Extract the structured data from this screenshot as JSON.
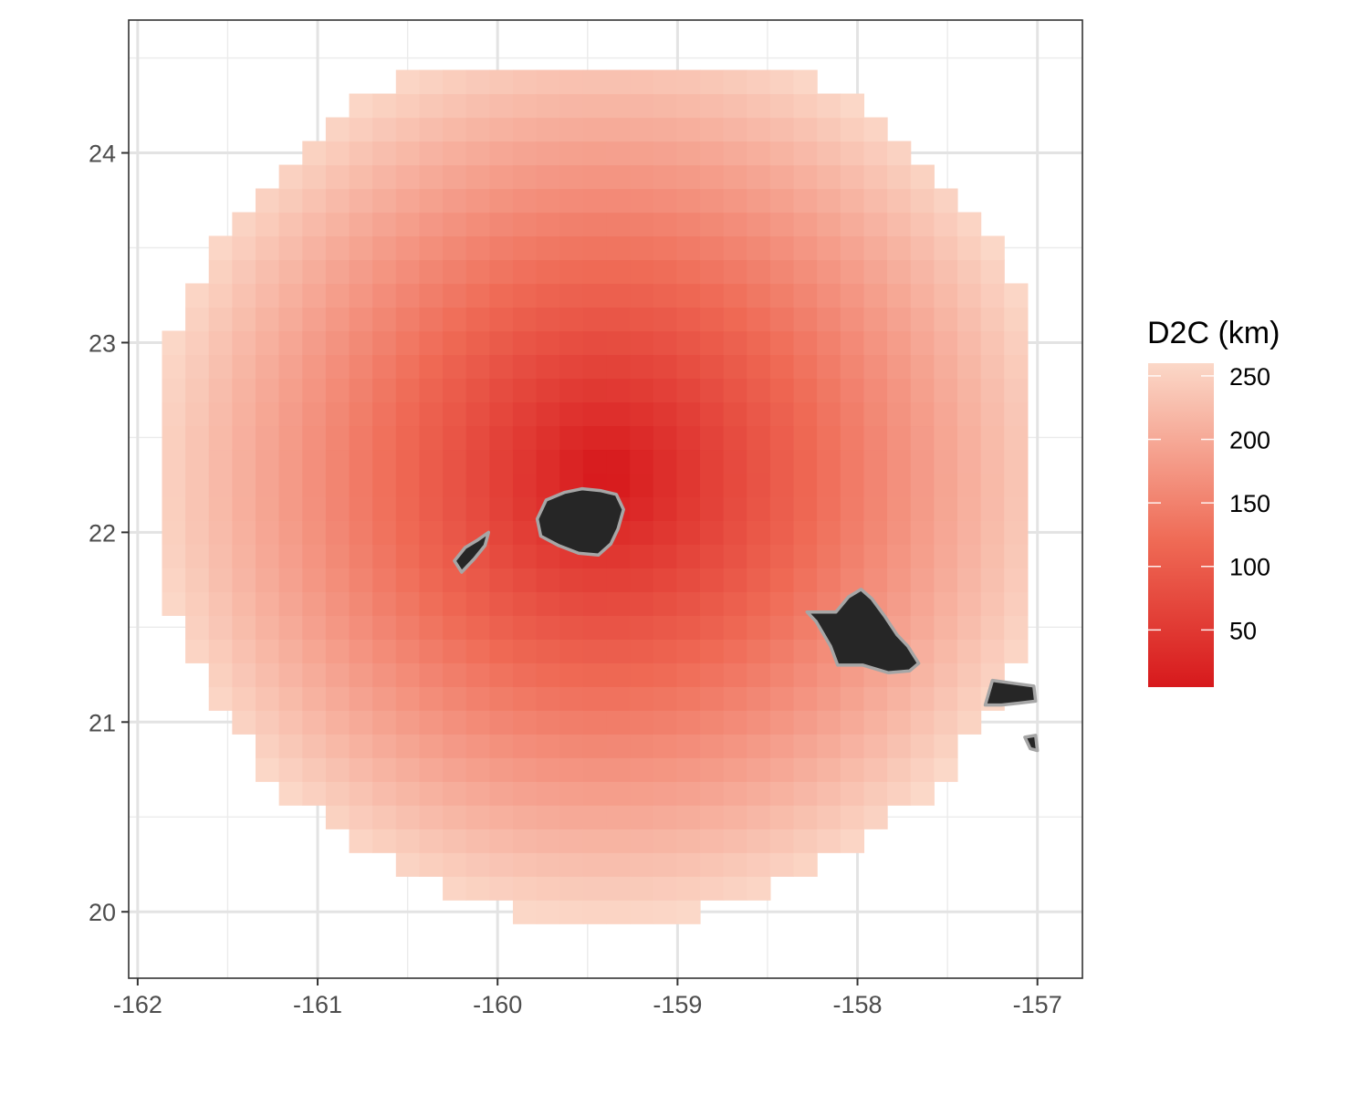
{
  "chart_data": {
    "type": "heatmap",
    "title": "",
    "xlabel": "",
    "ylabel": "",
    "xlim": [
      -162.05,
      -156.75
    ],
    "ylim": [
      19.65,
      24.7
    ],
    "x_ticks": [
      -162,
      -161,
      -160,
      -159,
      -158,
      -157
    ],
    "y_ticks": [
      20,
      21,
      22,
      23,
      24
    ],
    "x_tick_labels": [
      "-162",
      "-161",
      "-160",
      "-159",
      "-158",
      "-157"
    ],
    "y_tick_labels": [
      "20",
      "21",
      "22",
      "23",
      "24"
    ],
    "grid": true,
    "field": {
      "description_free": true,
      "center": [
        -159.4,
        22.3
      ],
      "radius_km": 260,
      "cell_size_deg": [
        0.13,
        0.125
      ],
      "x_start": -161.8,
      "y_start": 19.875,
      "n_cols": 37,
      "n_rows": 37
    },
    "colorbar": {
      "title": "D2C (km)",
      "min": 5,
      "max": 260,
      "ticks": [
        50,
        100,
        150,
        200,
        250
      ],
      "tick_labels": [
        "50",
        "100",
        "150",
        "200",
        "250"
      ],
      "low_color": "#d7191c",
      "mid_color": "#ef6a55",
      "high_color": "#fbd8c8",
      "position": "right"
    },
    "land": {
      "fill": "#262626",
      "outline": "#a6a6a6",
      "islands": [
        {
          "name": "kauai",
          "coords": [
            [
              -159.78,
              22.07
            ],
            [
              -159.73,
              22.17
            ],
            [
              -159.63,
              22.21
            ],
            [
              -159.53,
              22.23
            ],
            [
              -159.43,
              22.22
            ],
            [
              -159.34,
              22.2
            ],
            [
              -159.3,
              22.12
            ],
            [
              -159.33,
              22.02
            ],
            [
              -159.37,
              21.94
            ],
            [
              -159.44,
              21.88
            ],
            [
              -159.55,
              21.89
            ],
            [
              -159.66,
              21.93
            ],
            [
              -159.76,
              21.98
            ]
          ]
        },
        {
          "name": "niihau",
          "coords": [
            [
              -160.2,
              21.79
            ],
            [
              -160.24,
              21.85
            ],
            [
              -160.18,
              21.92
            ],
            [
              -160.11,
              21.96
            ],
            [
              -160.05,
              22.0
            ],
            [
              -160.07,
              21.93
            ],
            [
              -160.13,
              21.86
            ]
          ]
        },
        {
          "name": "oahu",
          "coords": [
            [
              -158.28,
              21.58
            ],
            [
              -158.12,
              21.58
            ],
            [
              -158.05,
              21.66
            ],
            [
              -157.98,
              21.7
            ],
            [
              -157.92,
              21.65
            ],
            [
              -157.85,
              21.56
            ],
            [
              -157.78,
              21.46
            ],
            [
              -157.72,
              21.4
            ],
            [
              -157.66,
              21.31
            ],
            [
              -157.71,
              21.27
            ],
            [
              -157.83,
              21.26
            ],
            [
              -157.97,
              21.3
            ],
            [
              -158.11,
              21.3
            ],
            [
              -158.15,
              21.4
            ],
            [
              -158.23,
              21.53
            ]
          ]
        },
        {
          "name": "molokai",
          "coords": [
            [
              -157.29,
              21.09
            ],
            [
              -157.25,
              21.22
            ],
            [
              -157.1,
              21.2
            ],
            [
              -157.02,
              21.19
            ],
            [
              -157.01,
              21.11
            ],
            [
              -157.1,
              21.1
            ],
            [
              -157.2,
              21.09
            ]
          ]
        },
        {
          "name": "lanai-edge",
          "coords": [
            [
              -157.07,
              20.92
            ],
            [
              -157.01,
              20.93
            ],
            [
              -157.0,
              20.85
            ],
            [
              -157.04,
              20.86
            ]
          ]
        }
      ]
    }
  }
}
